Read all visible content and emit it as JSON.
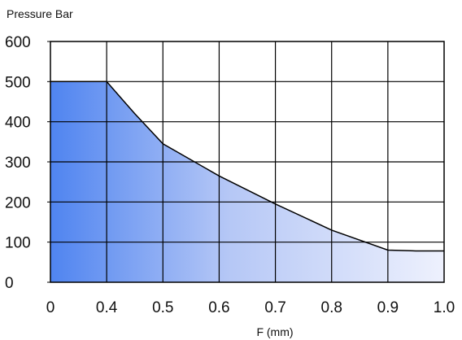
{
  "chart_data": {
    "type": "area",
    "title": "",
    "ylabel": "Pressure Bar",
    "xlabel": "F (mm)",
    "xlim": [
      0,
      1.0
    ],
    "ylim": [
      0,
      600
    ],
    "grid": true,
    "x_tick_labels": [
      "0",
      "0.4",
      "0.5",
      "0.6",
      "0.7",
      "0.8",
      "0.9",
      "1.0"
    ],
    "y_tick_labels": [
      "0",
      "100",
      "200",
      "300",
      "400",
      "500",
      "600"
    ],
    "y_ticks": [
      0,
      100,
      200,
      300,
      400,
      500,
      600
    ],
    "series": [
      {
        "x": [
          0,
          0.4,
          0.45,
          0.5,
          0.6,
          0.7,
          0.8,
          0.9,
          0.95,
          1.0
        ],
        "y": [
          500,
          500,
          420,
          345,
          265,
          195,
          130,
          80,
          78,
          78
        ]
      }
    ],
    "colors": {
      "fill_left": "#4f84f0",
      "fill_mid": "#b5c7f6",
      "fill_right": "#eef1fd",
      "line": "#000000",
      "grid": "#000000"
    }
  }
}
